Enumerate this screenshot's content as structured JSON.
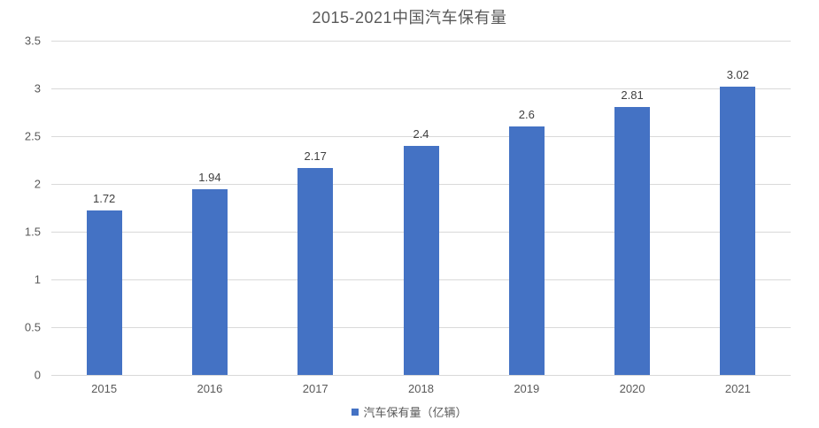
{
  "chart_data": {
    "type": "bar",
    "title": "2015-2021中国汽车保有量",
    "categories": [
      "2015",
      "2016",
      "2017",
      "2018",
      "2019",
      "2020",
      "2021"
    ],
    "values": [
      1.72,
      1.94,
      2.17,
      2.4,
      2.6,
      2.81,
      3.02
    ],
    "value_labels": [
      "1.72",
      "1.94",
      "2.17",
      "2.4",
      "2.6",
      "2.81",
      "3.02"
    ],
    "series_name": "汽车保有量（亿辆）",
    "xlabel": "",
    "ylabel": "",
    "ylim": [
      0,
      3.5
    ],
    "ytick_labels": [
      "0",
      "0.5",
      "1",
      "1.5",
      "2",
      "2.5",
      "3",
      "3.5"
    ],
    "grid": "horizontal",
    "legend_position": "bottom",
    "bar_color": "#4472c4",
    "gridline_color": "#d9d9d9",
    "title_color": "#595959",
    "tick_label_color": "#595959",
    "data_label_color": "#404040"
  }
}
